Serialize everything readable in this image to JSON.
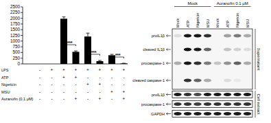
{
  "chart_data": {
    "type": "bar",
    "categories": [
      null,
      null,
      null,
      null,
      null,
      null,
      null,
      null
    ],
    "values": [
      0,
      0,
      1980,
      530,
      1200,
      120,
      380,
      20
    ],
    "errors": [
      0,
      0,
      80,
      40,
      150,
      30,
      40,
      10
    ],
    "color": "#000000",
    "ylim": [
      0,
      2500
    ],
    "yticks": [
      0,
      250,
      500,
      750,
      1000,
      1250,
      1500,
      1750,
      2000,
      2250,
      2500
    ],
    "tick_labels": "y",
    "conditions": [
      {
        "name": "LPS",
        "signs": [
          "-",
          "+",
          "+",
          "+",
          "+",
          "+",
          "+",
          "+"
        ]
      },
      {
        "name": "ATP",
        "signs": [
          "-",
          "-",
          "+",
          "+",
          "-",
          "-",
          "-",
          "-"
        ]
      },
      {
        "name": "Nigericin",
        "signs": [
          "-",
          "-",
          "-",
          "-",
          "+",
          "+",
          "-",
          "-"
        ]
      },
      {
        "name": "MSU",
        "signs": [
          "-",
          "-",
          "-",
          "-",
          "-",
          "-",
          "+",
          "+"
        ]
      },
      {
        "name": "Auranofin (0.1 μM)",
        "signs": [
          "-",
          "-",
          "-",
          "+",
          "-",
          "+",
          "-",
          "+"
        ]
      }
    ],
    "annotations": [
      {
        "text": "***",
        "between": [
          2,
          3
        ]
      },
      {
        "text": "***",
        "between": [
          4,
          5
        ]
      },
      {
        "text": "***",
        "between": [
          6,
          7
        ]
      }
    ]
  },
  "blot": {
    "groups": [
      {
        "label": "Mock",
        "lanes": [
          0,
          1,
          2,
          3
        ]
      },
      {
        "label": "Auranofin 0.1 μM",
        "lanes": [
          4,
          5,
          6,
          7
        ]
      }
    ],
    "lanes": [
      "Mock",
      "ATP",
      "Nigericin",
      "MSU",
      "Mock",
      "ATP",
      "Nigericin",
      "MSU"
    ],
    "sections": [
      {
        "label": "Supernatant",
        "rows": [
          {
            "label": "proIL1β",
            "bands": [
              0.1,
              0.9,
              0.9,
              0.8,
              0,
              0.35,
              0.5,
              0.3
            ]
          },
          {
            "label": "cleaved IL1β",
            "bands": [
              0,
              0.95,
              0.9,
              0.6,
              0,
              0.2,
              0.15,
              0.1
            ]
          },
          {
            "label": "procaspase-1",
            "bands": [
              0.3,
              0.9,
              0.8,
              0.5,
              0.2,
              0.4,
              0.6,
              0.3
            ]
          },
          {
            "label": "cleaved caspase-1",
            "bands": [
              0,
              0.8,
              0.6,
              0.3,
              0,
              0.1,
              0.05,
              0
            ]
          }
        ]
      },
      {
        "label": "Cell extract",
        "rows": [
          {
            "label": "proIL1β",
            "bands": [
              0.9,
              0.8,
              0.7,
              0.9,
              0.9,
              0.9,
              0.9,
              0.9
            ]
          },
          {
            "label": "procaspase-1",
            "bands": [
              0.8,
              0.8,
              0.75,
              0.8,
              0.8,
              0.8,
              0.8,
              0.8
            ]
          },
          {
            "label": "GAPDH",
            "bands": [
              0.9,
              0.9,
              0.9,
              0.9,
              0.9,
              0.9,
              0.9,
              0.9
            ]
          }
        ]
      }
    ]
  }
}
